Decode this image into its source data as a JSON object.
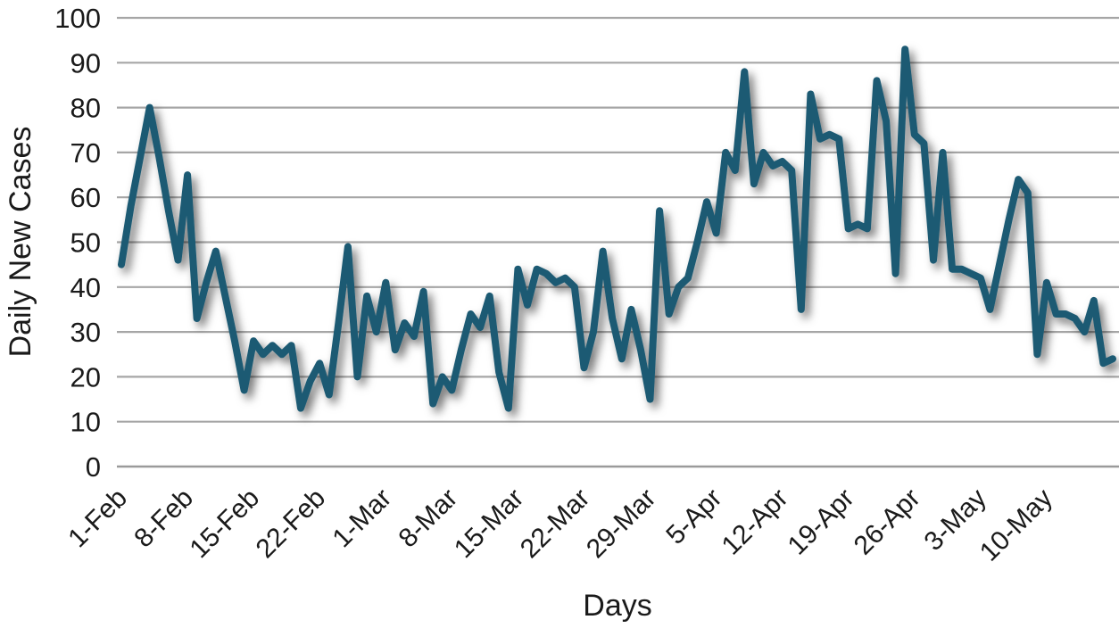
{
  "chart_data": {
    "type": "line",
    "title": "",
    "xlabel": "Days",
    "ylabel": "Daily New Cases",
    "ylim": [
      0,
      100
    ],
    "ytick_step": 10,
    "y_tick_labels": [
      "0",
      "10",
      "20",
      "30",
      "40",
      "50",
      "60",
      "70",
      "80",
      "90",
      "100"
    ],
    "x_tick_labels": [
      "1-Feb",
      "8-Feb",
      "15-Feb",
      "22-Feb",
      "1-Mar",
      "8-Mar",
      "15-Mar",
      "22-Mar",
      "29-Mar",
      "5-Apr",
      "12-Apr",
      "19-Apr",
      "26-Apr",
      "3-May",
      "10-May"
    ],
    "x_tick_every": 7,
    "grid": true,
    "legend_position": "none",
    "grid_color": "#a6a6a6",
    "axis_line_color": "#9a9a9a",
    "text_color": "#1a1a1a",
    "series": [
      {
        "name": "Daily New Cases",
        "color": "#1d5a73",
        "shadow": true,
        "values": [
          45,
          58,
          69,
          80,
          69,
          57,
          46,
          65,
          33,
          41,
          48,
          38,
          28,
          17,
          28,
          25,
          27,
          25,
          27,
          13,
          19,
          23,
          16,
          32,
          49,
          20,
          38,
          30,
          41,
          26,
          32,
          29,
          39,
          14,
          20,
          17,
          26,
          34,
          31,
          38,
          21,
          13,
          44,
          36,
          44,
          43,
          41,
          42,
          40,
          22,
          30,
          48,
          33,
          24,
          35,
          26,
          15,
          57,
          34,
          40,
          42,
          50,
          59,
          52,
          70,
          66,
          88,
          63,
          70,
          67,
          68,
          66,
          35,
          83,
          73,
          74,
          73,
          53,
          54,
          53,
          86,
          77,
          43,
          93,
          74,
          72,
          46,
          70,
          44,
          44,
          43,
          42,
          35,
          45,
          55,
          64,
          61,
          25,
          41,
          34,
          34,
          33,
          30,
          37,
          23,
          24
        ]
      }
    ]
  }
}
